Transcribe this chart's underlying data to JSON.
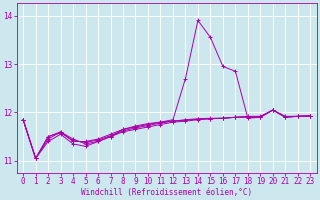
{
  "xlabel": "Windchill (Refroidissement éolien,°C)",
  "bg_color": "#cce8ee",
  "grid_color": "#ffffff",
  "line_color": "#aa00aa",
  "xlim": [
    -0.5,
    23.5
  ],
  "ylim": [
    10.75,
    14.25
  ],
  "yticks": [
    11,
    12,
    13,
    14
  ],
  "xticks": [
    0,
    1,
    2,
    3,
    4,
    5,
    6,
    7,
    8,
    9,
    10,
    11,
    12,
    13,
    14,
    15,
    16,
    17,
    18,
    19,
    20,
    21,
    22,
    23
  ],
  "series": [
    [
      11.85,
      11.05,
      11.5,
      11.58,
      11.42,
      11.38,
      11.43,
      11.52,
      11.62,
      11.68,
      11.73,
      11.78,
      11.82,
      11.84,
      11.86,
      11.87,
      11.88,
      11.9,
      11.91,
      11.91,
      12.05,
      11.91,
      11.92,
      11.93
    ],
    [
      11.85,
      11.05,
      11.45,
      11.6,
      11.4,
      11.4,
      11.45,
      11.55,
      11.65,
      11.72,
      11.77,
      11.8,
      11.82,
      11.85,
      11.87,
      11.88,
      11.88,
      11.9,
      11.92,
      11.92,
      12.05,
      11.92,
      11.92,
      11.93
    ],
    [
      11.85,
      11.05,
      11.5,
      11.6,
      11.45,
      11.35,
      11.4,
      11.5,
      11.6,
      11.65,
      11.7,
      11.75,
      11.8,
      11.82,
      11.85,
      11.87,
      11.88,
      11.9,
      11.9,
      11.9,
      12.05,
      11.9,
      11.92,
      11.93
    ],
    [
      11.85,
      11.05,
      11.4,
      11.55,
      11.35,
      11.3,
      11.4,
      11.5,
      11.65,
      11.7,
      11.75,
      11.8,
      11.85,
      12.7,
      13.9,
      13.55,
      12.95,
      12.85,
      11.88,
      11.9,
      12.05,
      11.9,
      11.92,
      11.93
    ]
  ],
  "tick_fontsize": 5.5,
  "xlabel_fontsize": 5.5
}
